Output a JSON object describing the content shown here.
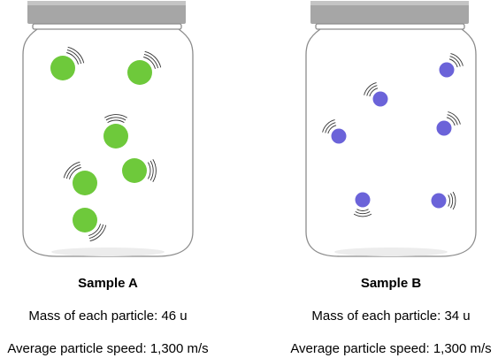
{
  "colors": {
    "sample_a_particle": "#6ec93b",
    "sample_b_particle": "#6b63d9",
    "jar_lid": "#a6a6a6",
    "jar_outline": "#8c8c8c"
  },
  "samples": [
    {
      "id": "a",
      "title": "Sample A",
      "mass_label": "Mass of each particle:",
      "mass_value": "46 u",
      "speed_label": "Average particle speed:",
      "speed_value": "1,300 m/s",
      "particle_size": "large",
      "particle_count": 6
    },
    {
      "id": "b",
      "title": "Sample B",
      "mass_label": "Mass of each particle:",
      "mass_value": "34 u",
      "speed_label": "Average particle speed:",
      "speed_value": "1,300 m/s",
      "particle_size": "small",
      "particle_count": 6
    }
  ]
}
